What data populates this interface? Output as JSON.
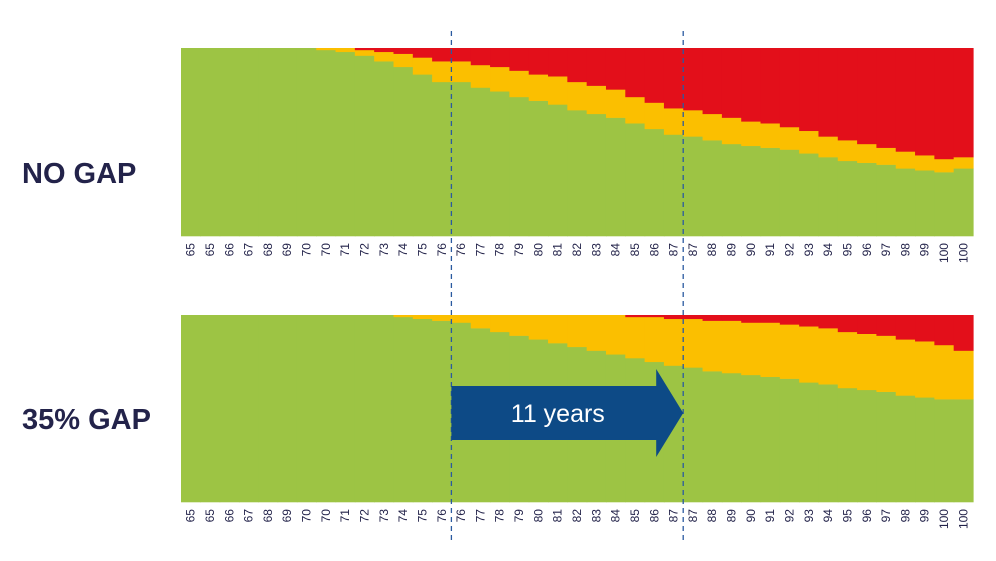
{
  "chart_data": [
    {
      "type": "area",
      "stacked": true,
      "label": "NO GAP",
      "categories": [
        "65",
        "65",
        "66",
        "67",
        "68",
        "69",
        "70",
        "70",
        "71",
        "72",
        "73",
        "74",
        "75",
        "76",
        "76",
        "77",
        "78",
        "79",
        "80",
        "81",
        "82",
        "83",
        "84",
        "85",
        "86",
        "87",
        "87",
        "88",
        "89",
        "90",
        "91",
        "92",
        "93",
        "94",
        "95",
        "96",
        "97",
        "98",
        "99",
        "100",
        "100"
      ],
      "ylim": [
        0,
        100
      ],
      "grid": false,
      "legend": "none",
      "series": [
        {
          "color": "#9dc444",
          "values": [
            100,
            100,
            100,
            100,
            100,
            100,
            100,
            99,
            98,
            96,
            93,
            90,
            86,
            82,
            82,
            79,
            77,
            74,
            72,
            70,
            67,
            65,
            63,
            60,
            57,
            54,
            53,
            51,
            49,
            48,
            47,
            46,
            44,
            42,
            40,
            39,
            38,
            36,
            35,
            34,
            36
          ]
        },
        {
          "color": "#fbbf00",
          "values": [
            0,
            0,
            0,
            0,
            0,
            0,
            0,
            1,
            2,
            3,
            5,
            7,
            9,
            11,
            11,
            12,
            13,
            14,
            14,
            15,
            15,
            15,
            15,
            14,
            14,
            14,
            14,
            14,
            14,
            13,
            13,
            12,
            12,
            11,
            11,
            10,
            9,
            9,
            8,
            7,
            6
          ]
        },
        {
          "color": "#e30f1a",
          "values": [
            0,
            0,
            0,
            0,
            0,
            0,
            0,
            0,
            0,
            1,
            2,
            3,
            5,
            7,
            7,
            9,
            10,
            12,
            14,
            15,
            18,
            20,
            22,
            26,
            29,
            32,
            33,
            35,
            37,
            39,
            40,
            42,
            44,
            47,
            49,
            51,
            53,
            55,
            57,
            59,
            58
          ]
        }
      ]
    },
    {
      "type": "area",
      "stacked": true,
      "label": "35% GAP",
      "categories": [
        "65",
        "65",
        "66",
        "67",
        "68",
        "69",
        "70",
        "70",
        "71",
        "72",
        "73",
        "74",
        "75",
        "76",
        "76",
        "77",
        "78",
        "79",
        "80",
        "81",
        "82",
        "83",
        "84",
        "85",
        "86",
        "87",
        "87",
        "88",
        "89",
        "90",
        "91",
        "92",
        "93",
        "94",
        "95",
        "96",
        "97",
        "98",
        "99",
        "100",
        "100"
      ],
      "ylim": [
        0,
        100
      ],
      "grid": false,
      "legend": "none",
      "series": [
        {
          "color": "#9dc444",
          "values": [
            100,
            100,
            100,
            100,
            100,
            100,
            100,
            100,
            100,
            100,
            100,
            99,
            98,
            97,
            96,
            93,
            91,
            89,
            87,
            85,
            83,
            81,
            79,
            77,
            75,
            73,
            72,
            70,
            69,
            68,
            67,
            66,
            64,
            63,
            61,
            60,
            59,
            57,
            56,
            55,
            55
          ]
        },
        {
          "color": "#fbbf00",
          "values": [
            0,
            0,
            0,
            0,
            0,
            0,
            0,
            0,
            0,
            0,
            0,
            1,
            2,
            3,
            4,
            7,
            9,
            11,
            13,
            15,
            17,
            19,
            21,
            22,
            24,
            25,
            26,
            27,
            28,
            28,
            29,
            29,
            30,
            30,
            30,
            30,
            30,
            30,
            30,
            29,
            26
          ]
        },
        {
          "color": "#e30f1a",
          "values": [
            0,
            0,
            0,
            0,
            0,
            0,
            0,
            0,
            0,
            0,
            0,
            0,
            0,
            0,
            0,
            0,
            0,
            0,
            0,
            0,
            0,
            0,
            0,
            1,
            1,
            2,
            2,
            3,
            3,
            4,
            4,
            5,
            6,
            7,
            9,
            10,
            11,
            13,
            14,
            16,
            19
          ]
        }
      ]
    }
  ],
  "annotation": {
    "text": "11 years",
    "arrow_color": "#0d4a86",
    "from_age": "76",
    "to_age": "87"
  },
  "marker_line_color": "#2a5aa0",
  "label_color": "#23234a"
}
